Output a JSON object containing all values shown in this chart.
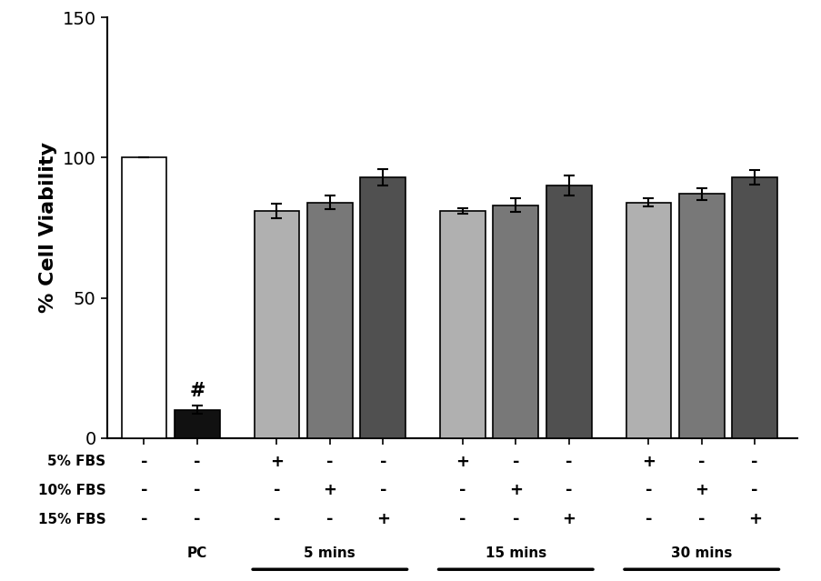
{
  "bar_values": [
    100,
    10,
    81,
    84,
    93,
    81,
    83,
    90,
    84,
    87,
    93
  ],
  "bar_errors": [
    0,
    1.5,
    2.5,
    2.5,
    3.0,
    1.0,
    2.5,
    3.5,
    1.5,
    2.0,
    2.5
  ],
  "bar_colors": [
    "#ffffff",
    "#111111",
    "#b0b0b0",
    "#787878",
    "#505050",
    "#b0b0b0",
    "#787878",
    "#505050",
    "#b0b0b0",
    "#787878",
    "#505050"
  ],
  "bar_edge_colors": [
    "#000000",
    "#000000",
    "#000000",
    "#000000",
    "#000000",
    "#000000",
    "#000000",
    "#000000",
    "#000000",
    "#000000",
    "#000000"
  ],
  "ylabel": "% Cell Viability",
  "ylim": [
    0,
    150
  ],
  "yticks": [
    0,
    50,
    100,
    150
  ],
  "bar_width": 0.85,
  "hash_symbol": "#",
  "fbs_rows": [
    {
      "label": "5% FBS",
      "signs": [
        "-",
        "-",
        "+",
        "-",
        "-",
        "+",
        "-",
        "-",
        "+",
        "-",
        "-"
      ]
    },
    {
      "label": "10% FBS",
      "signs": [
        "-",
        "-",
        "-",
        "+",
        "-",
        "-",
        "+",
        "-",
        "-",
        "+",
        "-"
      ]
    },
    {
      "label": "15% FBS",
      "signs": [
        "-",
        "-",
        "-",
        "-",
        "+",
        "-",
        "-",
        "+",
        "-",
        "-",
        "+"
      ]
    }
  ],
  "group_info": [
    {
      "label": "PC",
      "x": 2,
      "line": null
    },
    {
      "label": "5 mins",
      "x": 4,
      "line": [
        3.0,
        6.0
      ]
    },
    {
      "label": "15 mins",
      "x": 7.5,
      "line": [
        6.5,
        9.5
      ]
    },
    {
      "label": "30 mins",
      "x": 10.5,
      "line": [
        9.5,
        12.5
      ]
    }
  ],
  "background_color": "#ffffff",
  "axis_fontsize": 16,
  "tick_fontsize": 14,
  "annotation_fontsize": 12
}
